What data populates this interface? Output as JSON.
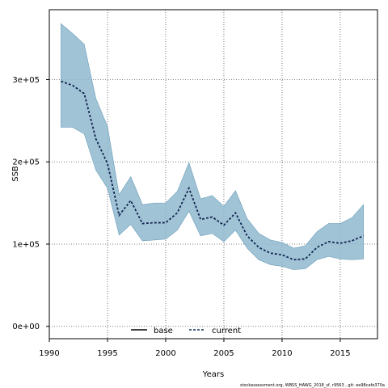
{
  "chart_data": {
    "type": "line",
    "xlabel": "Years",
    "ylabel": "SSB",
    "xlim": [
      1990,
      2018.2
    ],
    "ylim": [
      -15000,
      385000
    ],
    "xticks": [
      1990,
      1995,
      2000,
      2005,
      2010,
      2015
    ],
    "xtick_labels": [
      "1990",
      "1995",
      "2000",
      "2005",
      "2010",
      "2015"
    ],
    "yticks": [
      0,
      100000,
      200000,
      300000
    ],
    "ytick_labels": [
      "0e+00",
      "1e+05",
      "2e+05",
      "3e+05"
    ],
    "grid": true,
    "legend_position": "bottom",
    "legend": [
      {
        "label": "base",
        "style": "solid"
      },
      {
        "label": "current",
        "style": "dashed"
      }
    ],
    "x": [
      1991,
      1992,
      1993,
      1994,
      1995,
      1996,
      1997,
      1998,
      1999,
      2000,
      2001,
      2002,
      2003,
      2004,
      2005,
      2006,
      2007,
      2008,
      2009,
      2010,
      2011,
      2012,
      2013,
      2014,
      2015,
      2016,
      2017
    ],
    "series": [
      {
        "name": "current",
        "values": [
          298000,
          293000,
          283000,
          228000,
          198000,
          135000,
          153000,
          125000,
          126000,
          126000,
          138000,
          168000,
          130000,
          133000,
          123000,
          138000,
          110000,
          96000,
          89000,
          87000,
          81000,
          82000,
          96000,
          103000,
          101000,
          104000,
          110000
        ],
        "upper": [
          368000,
          356000,
          343000,
          277000,
          243000,
          160000,
          182000,
          148000,
          150000,
          150000,
          164000,
          199000,
          155000,
          159000,
          146000,
          165000,
          131000,
          113000,
          105000,
          102000,
          95000,
          98000,
          115000,
          125000,
          125000,
          132000,
          148000
        ],
        "lower": [
          242000,
          242000,
          234000,
          190000,
          168000,
          111000,
          124000,
          104000,
          105000,
          106000,
          117000,
          140000,
          110000,
          113000,
          103000,
          117000,
          95000,
          81000,
          75000,
          73000,
          69000,
          70000,
          81000,
          85000,
          82000,
          81000,
          82000
        ]
      },
      {
        "name": "base",
        "values": [
          298000,
          293000,
          283000,
          228000,
          198000,
          135000,
          153000,
          125000,
          126000,
          126000,
          138000,
          168000,
          130000,
          133000,
          123000,
          138000,
          110000,
          96000,
          89000,
          87000,
          81000,
          82000,
          96000,
          103000,
          101000,
          104000,
          110000
        ]
      }
    ],
    "colors": {
      "band_fill": "#8fb8cf",
      "band_stroke": "#6a9cb8",
      "current_line": "#0a2a5c",
      "base_line": "#000000",
      "grid": "#555555"
    }
  },
  "caption": "stockassessment.org, WBSS_HAWG_2018_sf, r9563 , git: ee98cafe370a"
}
